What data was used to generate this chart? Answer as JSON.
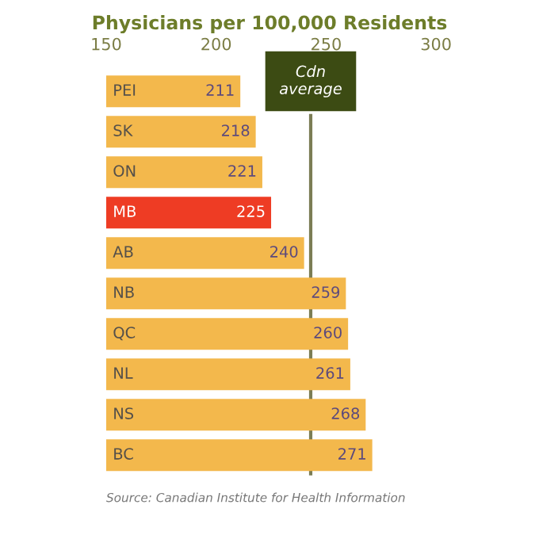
{
  "chart_data": {
    "type": "bar",
    "orientation": "horizontal",
    "title": "Physicians per 100,000 Residents",
    "categories": [
      "PEI",
      "SK",
      "ON",
      "MB",
      "AB",
      "NB",
      "QC",
      "NL",
      "NS",
      "BC"
    ],
    "values": [
      211,
      218,
      221,
      225,
      240,
      259,
      260,
      261,
      268,
      271
    ],
    "colors": [
      "#f3b84c",
      "#f3b84c",
      "#f3b84c",
      "#ee3c24",
      "#f3b84c",
      "#f3b84c",
      "#f3b84c",
      "#f3b84c",
      "#f3b84c",
      "#f3b84c"
    ],
    "xlim": [
      150,
      300
    ],
    "xticks": [
      150,
      200,
      250,
      300
    ],
    "data_labels": true,
    "grid": false,
    "legend": false,
    "ref_lines": [
      {
        "axis": "x",
        "value": 243,
        "label": "Cdn\naverage",
        "color": "#7b7d55"
      }
    ],
    "annotations": [
      "Source: Canadian Institute for Health Information"
    ]
  }
}
